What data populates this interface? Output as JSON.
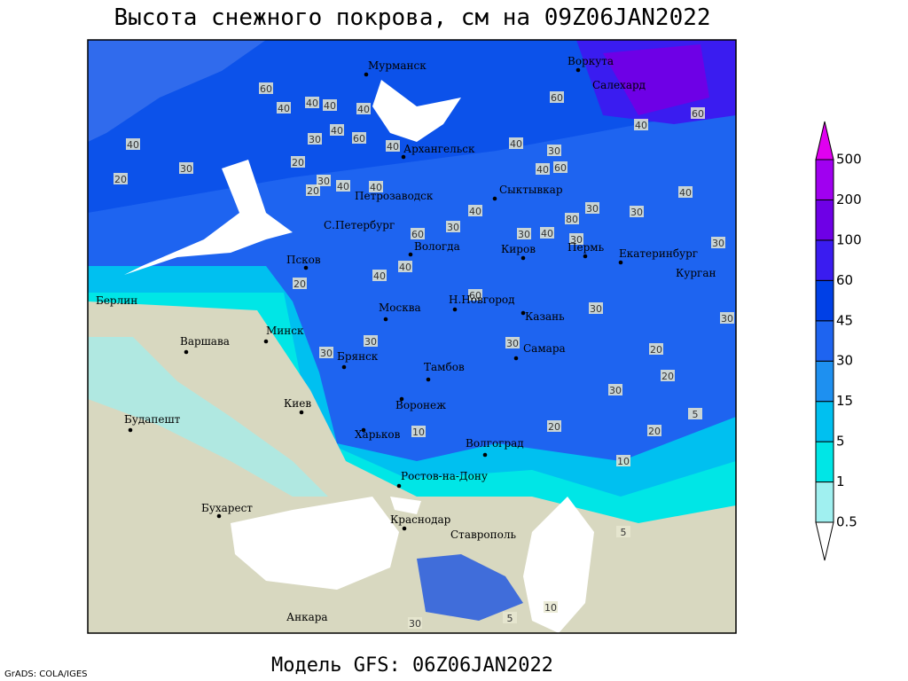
{
  "title": "Высота снежного покрова, см на 09Z06JAN2022",
  "footer": "Модель GFS: 06Z06JAN2022",
  "credit": "GrADS: COLA/IGES",
  "legend": {
    "levels": [
      0.5,
      1,
      5,
      15,
      30,
      45,
      60,
      100,
      200,
      500
    ],
    "colors": [
      "#ffffff",
      "#a0f0f0",
      "#00e6e6",
      "#00c0f0",
      "#1e90f0",
      "#1e64f0",
      "#0040e6",
      "#3a1cf0",
      "#6e00e6",
      "#a000f0",
      "#e000f0"
    ]
  },
  "cities": [
    "Мурманск",
    "Воркута",
    "Салехард",
    "Архангельск",
    "Петрозаводск",
    "Сыктывкар",
    "С.Петербург",
    "Вологда",
    "Киров",
    "Пермь",
    "Екатеринбург",
    "Псков",
    "Курган",
    "Берлин",
    "Москва",
    "Н.Новгород",
    "Казань",
    "Варшава",
    "Минск",
    "Брянск",
    "Самара",
    "Тамбов",
    "Киев",
    "Воронеж",
    "Будапешт",
    "Харьков",
    "Волгоград",
    "Ростов-на-Дону",
    "Бухарест",
    "Краснодар",
    "Ставрополь",
    "Анкара"
  ],
  "contour_labels": [
    60,
    40,
    40,
    40,
    40,
    30,
    40,
    60,
    40,
    40,
    30,
    20,
    20,
    20,
    30,
    40,
    40,
    60,
    30,
    40,
    40,
    60,
    40,
    60,
    40,
    30,
    30,
    80,
    40,
    60,
    30,
    30,
    40,
    30,
    30,
    40,
    40,
    20,
    60,
    30,
    30,
    30,
    30,
    30,
    20,
    20,
    30,
    5,
    20,
    20,
    10,
    10,
    5,
    10,
    30,
    5
  ]
}
